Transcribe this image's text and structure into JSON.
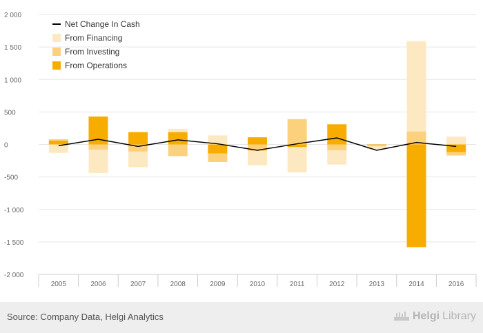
{
  "chart_data": {
    "type": "bar",
    "categories": [
      "2005",
      "2006",
      "2007",
      "2008",
      "2009",
      "2010",
      "2011",
      "2012",
      "2013",
      "2014",
      "2016"
    ],
    "series": [
      {
        "name": "Net Change In Cash",
        "kind": "line",
        "values": [
          -20,
          80,
          -30,
          70,
          10,
          -90,
          10,
          100,
          -90,
          30,
          -30
        ]
      },
      {
        "name": "From Financing",
        "kind": "bar",
        "values": [
          -130,
          -360,
          -240,
          50,
          140,
          -220,
          -390,
          -220,
          -40,
          1390,
          120
        ]
      },
      {
        "name": "From Investing",
        "kind": "bar",
        "values": [
          20,
          -80,
          -110,
          -180,
          -130,
          -100,
          390,
          -90,
          -20,
          200,
          -50
        ]
      },
      {
        "name": "From Operations",
        "kind": "bar",
        "values": [
          60,
          430,
          190,
          190,
          -140,
          110,
          -40,
          310,
          -10,
          -1580,
          -120
        ]
      }
    ],
    "ylim": [
      -2000,
      2000
    ],
    "yticks": [
      "-2 000",
      "-1 500",
      "-1 000",
      "-500",
      "0",
      "500",
      "1 000",
      "1 500",
      "2 000"
    ],
    "ytick_values": [
      -2000,
      -1500,
      -1000,
      -500,
      0,
      500,
      1000,
      1500,
      2000
    ],
    "grid": true,
    "legend_position": "top-left",
    "colors": {
      "line": "#000000",
      "financing": "#fde9c1",
      "investing": "#fcd17d",
      "operations": "#f6ad00",
      "grid": "#e6e6e6",
      "axis": "#cccccc"
    }
  },
  "footer": {
    "source": "Source: Company Data, Helgi Analytics",
    "brand_prefix": "Helgi",
    "brand_suffix": "Library"
  }
}
